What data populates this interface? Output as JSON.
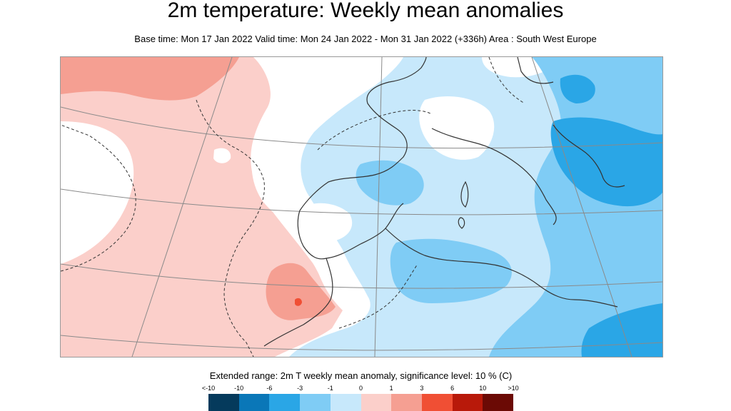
{
  "header": {
    "title": "2m temperature: Weekly mean anomalies",
    "subtitle": "Base time: Mon 17 Jan 2022 Valid time: Mon 24 Jan 2022 - Mon 31 Jan 2022 (+336h) Area : South West Europe"
  },
  "legend": {
    "title": "Extended range: 2m T weekly mean anomaly, significance level: 10 % (C)",
    "ticks": [
      "<-10",
      "-10",
      "-6",
      "-3",
      "-1",
      "0",
      "1",
      "3",
      "6",
      "10",
      ">10"
    ],
    "colors": [
      "#053a5c",
      "#0a77b8",
      "#2aa6e6",
      "#7fccf5",
      "#c7e8fb",
      "#ffffff",
      "#fbcfca",
      "#f59f92",
      "#f04f34",
      "#b8190a",
      "#6b0a05"
    ]
  },
  "map": {
    "area": "South West Europe",
    "colors": {
      "ocean_warm": "#fbcfca",
      "warm_core": "#f59f92",
      "warm_hot": "#f04f34",
      "neutral": "#ffffff",
      "cool_light": "#c7e8fb",
      "cool_mid": "#7fccf5",
      "cool_deep": "#2aa6e6",
      "coast": "#333333",
      "grid": "#8a8a8a"
    }
  }
}
